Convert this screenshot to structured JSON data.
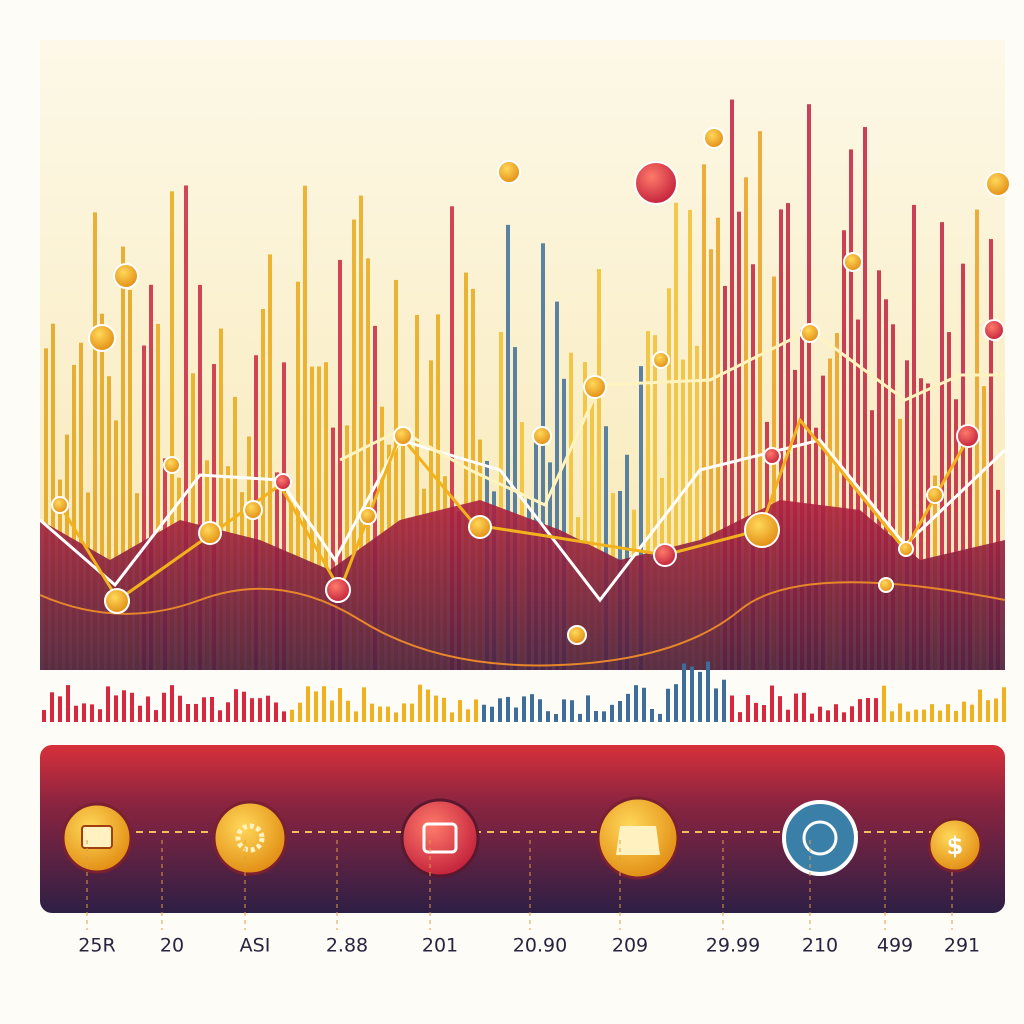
{
  "axis_labels": [
    "25R",
    "20",
    "ASI",
    "2.88",
    "201",
    "20.90",
    "209",
    "29.99",
    "210",
    "499",
    "291"
  ],
  "dollar_icon_symbol": "$"
}
